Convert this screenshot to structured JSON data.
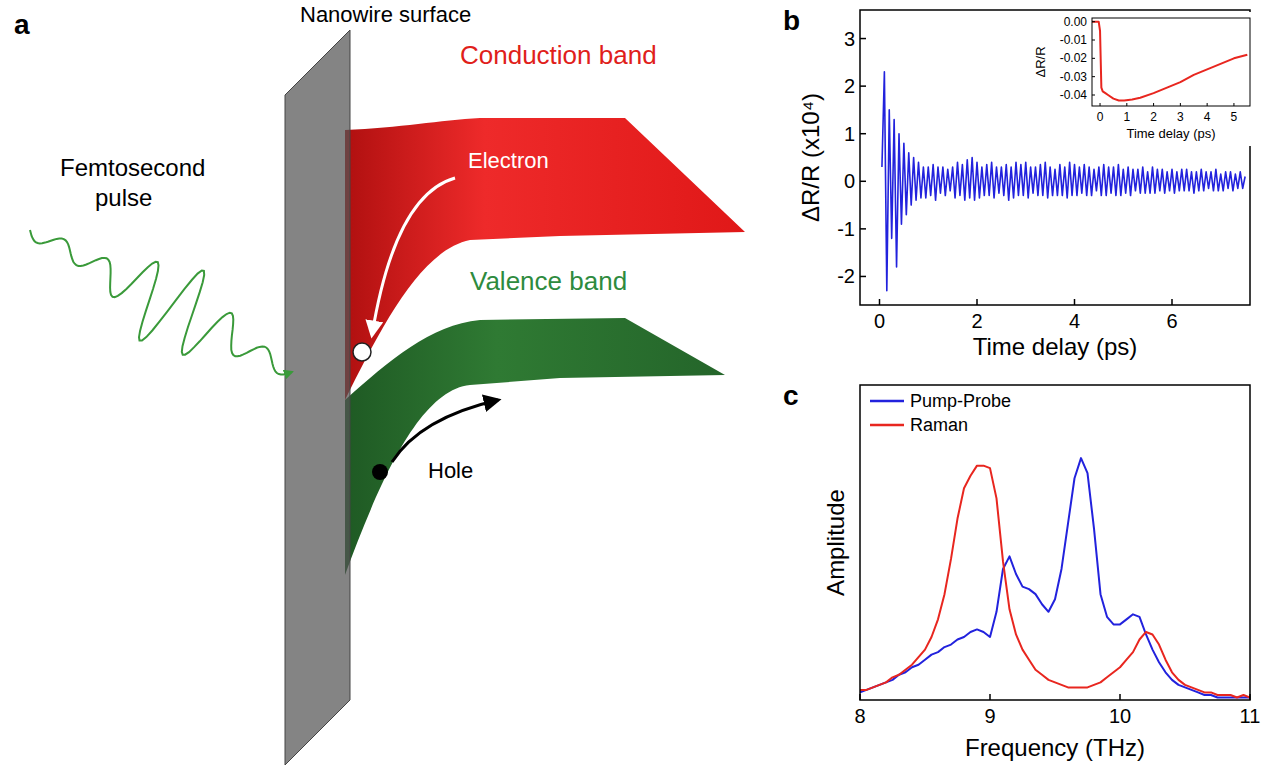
{
  "diagram": {
    "panel": "a",
    "labels": {
      "surface": "Nanowire surface",
      "pulse": "Femtosecond pulse",
      "conduction": "Conduction band",
      "electron": "Electron",
      "valence": "Valence band",
      "hole": "Hole"
    }
  },
  "chart_data": [
    {
      "panel": "b",
      "type": "line",
      "x_label": "Time delay (ps)",
      "y_label": "ΔR/R (x10⁴)",
      "color": "#2222dd",
      "xlim": [
        -0.4,
        7.6
      ],
      "ylim": [
        -2.6,
        3.6
      ],
      "xticks": [
        0,
        2,
        4,
        6
      ],
      "yticks": [
        -2,
        -1,
        0,
        1,
        2,
        3
      ],
      "x": [
        0.05,
        0.1,
        0.15,
        0.2,
        0.25,
        0.3,
        0.35,
        0.4,
        0.45,
        0.5,
        0.55,
        0.6,
        0.65,
        0.7,
        0.75,
        0.8,
        0.85,
        0.9,
        0.95,
        1,
        1.05,
        1.1,
        1.15,
        1.2,
        1.25,
        1.3,
        1.35,
        1.4,
        1.45,
        1.5,
        1.55,
        1.6,
        1.65,
        1.7,
        1.75,
        1.8,
        1.85,
        1.9,
        1.95,
        2,
        2.05,
        2.1,
        2.15,
        2.2,
        2.25,
        2.3,
        2.35,
        2.4,
        2.45,
        2.5,
        2.55,
        2.6,
        2.65,
        2.7,
        2.75,
        2.8,
        2.85,
        2.9,
        2.95,
        3,
        3.05,
        3.1,
        3.15,
        3.2,
        3.25,
        3.3,
        3.35,
        3.4,
        3.45,
        3.5,
        3.55,
        3.6,
        3.65,
        3.7,
        3.75,
        3.8,
        3.85,
        3.9,
        3.95,
        4,
        4.05,
        4.1,
        4.15,
        4.2,
        4.25,
        4.3,
        4.35,
        4.4,
        4.45,
        4.5,
        4.55,
        4.6,
        4.65,
        4.7,
        4.75,
        4.8,
        4.85,
        4.9,
        4.95,
        5,
        5.05,
        5.1,
        5.15,
        5.2,
        5.25,
        5.3,
        5.35,
        5.4,
        5.45,
        5.5,
        5.55,
        5.6,
        5.65,
        5.7,
        5.75,
        5.8,
        5.85,
        5.9,
        5.95,
        6,
        6.05,
        6.1,
        6.15,
        6.2,
        6.25,
        6.3,
        6.35,
        6.4,
        6.45,
        6.5,
        6.55,
        6.6,
        6.65,
        6.7,
        6.75,
        6.8,
        6.85,
        6.9,
        6.95,
        7,
        7.05,
        7.1,
        7.15,
        7.2,
        7.25,
        7.3,
        7.35,
        7.4,
        7.45,
        7.5
      ],
      "values": [
        0.3,
        2.3,
        -2.3,
        1.5,
        -1.2,
        1.3,
        -1.8,
        1.0,
        -0.9,
        0.8,
        -0.7,
        0.6,
        -0.5,
        0.5,
        -0.4,
        0.4,
        -0.35,
        0.3,
        -0.35,
        0.3,
        -0.3,
        0.35,
        -0.4,
        0.3,
        -0.25,
        0.3,
        -0.3,
        0.25,
        -0.2,
        0.3,
        -0.35,
        0.4,
        -0.3,
        0.35,
        -0.4,
        0.45,
        -0.35,
        0.5,
        -0.4,
        0.4,
        -0.35,
        0.3,
        -0.3,
        0.35,
        -0.3,
        0.4,
        -0.35,
        0.3,
        -0.25,
        0.3,
        -0.3,
        0.35,
        -0.4,
        0.3,
        -0.35,
        0.4,
        -0.3,
        0.35,
        -0.3,
        0.4,
        -0.35,
        0.3,
        -0.25,
        0.3,
        -0.3,
        0.35,
        -0.3,
        0.4,
        -0.35,
        0.3,
        -0.3,
        0.25,
        -0.3,
        0.35,
        -0.3,
        0.3,
        -0.35,
        0.4,
        -0.3,
        0.35,
        -0.3,
        0.3,
        -0.25,
        0.35,
        -0.3,
        0.3,
        -0.3,
        0.25,
        -0.2,
        0.3,
        -0.3,
        0.35,
        -0.3,
        0.3,
        -0.25,
        0.3,
        -0.3,
        0.35,
        -0.3,
        0.25,
        -0.25,
        0.3,
        -0.3,
        0.25,
        -0.2,
        0.25,
        -0.25,
        0.3,
        -0.25,
        0.2,
        -0.25,
        0.3,
        -0.25,
        0.25,
        -0.2,
        0.25,
        -0.25,
        0.2,
        -0.2,
        0.25,
        -0.25,
        0.2,
        -0.2,
        0.25,
        -0.2,
        0.25,
        -0.2,
        0.2,
        -0.25,
        0.2,
        -0.2,
        0.25,
        -0.2,
        0.2,
        -0.15,
        0.2,
        -0.2,
        0.25,
        -0.2,
        0.15,
        -0.2,
        0.2,
        -0.15,
        0.2,
        -0.2,
        0.15,
        -0.15,
        0.2,
        -0.15,
        0.1
      ]
    },
    {
      "type": "line",
      "x_label": "Time delay (ps)",
      "y_label": "ΔR/R",
      "color": "#e8261f",
      "xlim": [
        -0.3,
        5.6
      ],
      "ylim": [
        -0.046,
        0.002
      ],
      "xticks": [
        0,
        1,
        2,
        3,
        4,
        5
      ],
      "yticks": [
        {
          "value": 0,
          "label": "0.00"
        },
        {
          "value": -0.01,
          "label": "-0.01"
        },
        {
          "value": -0.02,
          "label": "-0.02"
        },
        {
          "value": -0.03,
          "label": "-0.03"
        },
        {
          "value": -0.04,
          "label": "-0.04"
        }
      ],
      "x": [
        -0.3,
        -0.05,
        0,
        0.05,
        0.1,
        0.2,
        0.3,
        0.5,
        0.7,
        0.9,
        1.2,
        1.5,
        2,
        2.5,
        3,
        3.5,
        4,
        4.5,
        5,
        5.5
      ],
      "values": [
        0,
        0,
        -0.005,
        -0.036,
        -0.038,
        -0.039,
        -0.04,
        -0.042,
        -0.043,
        -0.043,
        -0.0425,
        -0.0415,
        -0.039,
        -0.036,
        -0.033,
        -0.029,
        -0.026,
        -0.023,
        -0.02,
        -0.018
      ]
    },
    {
      "panel": "c",
      "type": "line",
      "x_label": "Frequency (THz)",
      "y_label": "Amplitude",
      "legend": "upper left",
      "tick_labels": "x",
      "xlim": [
        8,
        11
      ],
      "ylim": [
        0,
        1.25
      ],
      "xticks": [
        8,
        9,
        10,
        11
      ],
      "yticks": [],
      "x": [
        8,
        8.05,
        8.1,
        8.15,
        8.2,
        8.25,
        8.3,
        8.35,
        8.4,
        8.45,
        8.5,
        8.55,
        8.6,
        8.65,
        8.7,
        8.75,
        8.8,
        8.85,
        8.9,
        8.95,
        9,
        9.05,
        9.1,
        9.15,
        9.2,
        9.25,
        9.3,
        9.35,
        9.4,
        9.45,
        9.5,
        9.55,
        9.6,
        9.65,
        9.7,
        9.75,
        9.8,
        9.85,
        9.9,
        9.95,
        10,
        10.05,
        10.1,
        10.15,
        10.2,
        10.25,
        10.3,
        10.35,
        10.4,
        10.45,
        10.5,
        10.55,
        10.6,
        10.65,
        10.7,
        10.75,
        10.8,
        10.85,
        10.9,
        10.95,
        11
      ],
      "series": [
        {
          "name": "Pump-Probe",
          "color": "#2222dd",
          "values": [
            0.03,
            0.04,
            0.05,
            0.06,
            0.07,
            0.08,
            0.1,
            0.11,
            0.13,
            0.14,
            0.16,
            0.18,
            0.19,
            0.21,
            0.22,
            0.24,
            0.25,
            0.27,
            0.28,
            0.27,
            0.25,
            0.35,
            0.52,
            0.57,
            0.5,
            0.45,
            0.44,
            0.42,
            0.38,
            0.35,
            0.4,
            0.52,
            0.7,
            0.88,
            0.96,
            0.9,
            0.68,
            0.42,
            0.33,
            0.3,
            0.3,
            0.32,
            0.34,
            0.33,
            0.26,
            0.2,
            0.15,
            0.11,
            0.08,
            0.06,
            0.05,
            0.04,
            0.03,
            0.02,
            0.02,
            0.01,
            0.01,
            0.01,
            0.01,
            0.01,
            0.01
          ]
        },
        {
          "name": "Raman",
          "color": "#e8261f",
          "values": [
            0.04,
            0.04,
            0.05,
            0.06,
            0.07,
            0.09,
            0.1,
            0.12,
            0.14,
            0.17,
            0.2,
            0.25,
            0.32,
            0.42,
            0.56,
            0.72,
            0.84,
            0.89,
            0.93,
            0.93,
            0.92,
            0.8,
            0.55,
            0.36,
            0.26,
            0.2,
            0.16,
            0.12,
            0.1,
            0.08,
            0.07,
            0.06,
            0.05,
            0.05,
            0.05,
            0.05,
            0.06,
            0.07,
            0.09,
            0.11,
            0.13,
            0.16,
            0.19,
            0.24,
            0.27,
            0.26,
            0.22,
            0.16,
            0.11,
            0.08,
            0.06,
            0.05,
            0.04,
            0.03,
            0.03,
            0.02,
            0.02,
            0.02,
            0.01,
            0.02,
            0.01
          ]
        }
      ]
    }
  ]
}
